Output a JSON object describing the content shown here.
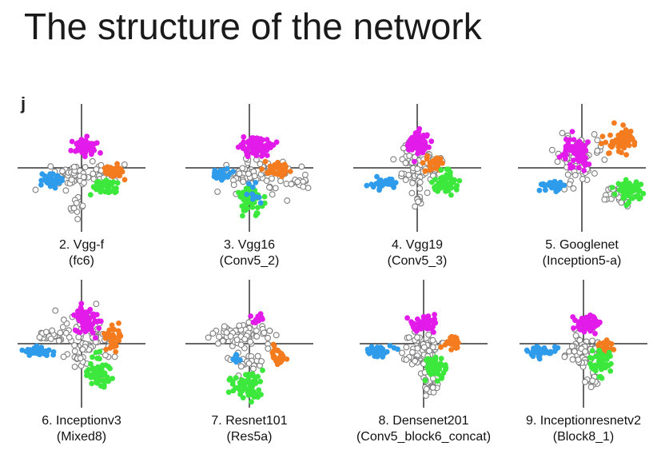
{
  "slide": {
    "title": "The structure of the network",
    "panel_letter": "j"
  },
  "colors": {
    "magenta": "#e21bea",
    "orange": "#f47b1e",
    "green": "#3ce83c",
    "blue": "#2f9ceb",
    "gray": "#7f7f7f",
    "axis": "#333333"
  },
  "chart_data": [
    {
      "type": "scatter",
      "index": "2",
      "network": "Vgg-f",
      "layer": "fc6",
      "line1": "2. Vgg-f",
      "line2": "(fc6)"
    },
    {
      "type": "scatter",
      "index": "3",
      "network": "Vgg16",
      "layer": "Conv5_2",
      "line1": "3. Vgg16",
      "line2": "(Conv5_2)"
    },
    {
      "type": "scatter",
      "index": "4",
      "network": "Vgg19",
      "layer": "Conv5_3",
      "line1": "4. Vgg19",
      "line2": "(Conv5_3)"
    },
    {
      "type": "scatter",
      "index": "5",
      "network": "Googlenet",
      "layer": "Inception5-a",
      "line1": "5. Googlenet",
      "line2": "(Inception5-a)"
    },
    {
      "type": "scatter",
      "index": "6",
      "network": "Inceptionv3",
      "layer": "Mixed8",
      "line1": "6. Inceptionv3",
      "line2": "(Mixed8)"
    },
    {
      "type": "scatter",
      "index": "7",
      "network": "Resnet101",
      "layer": "Res5a",
      "line1": "7. Resnet101",
      "line2": "(Res5a)"
    },
    {
      "type": "scatter",
      "index": "8",
      "network": "Densenet201",
      "layer": "Conv5_block6_concat",
      "line1": "8. Densenet201",
      "line2": "(Conv5_block6_concat)"
    },
    {
      "type": "scatter",
      "index": "9",
      "network": "Inceptionresnetv2",
      "layer": "Block8_1",
      "line1": "9. Inceptionresnetv2",
      "line2": "(Block8_1)"
    }
  ]
}
